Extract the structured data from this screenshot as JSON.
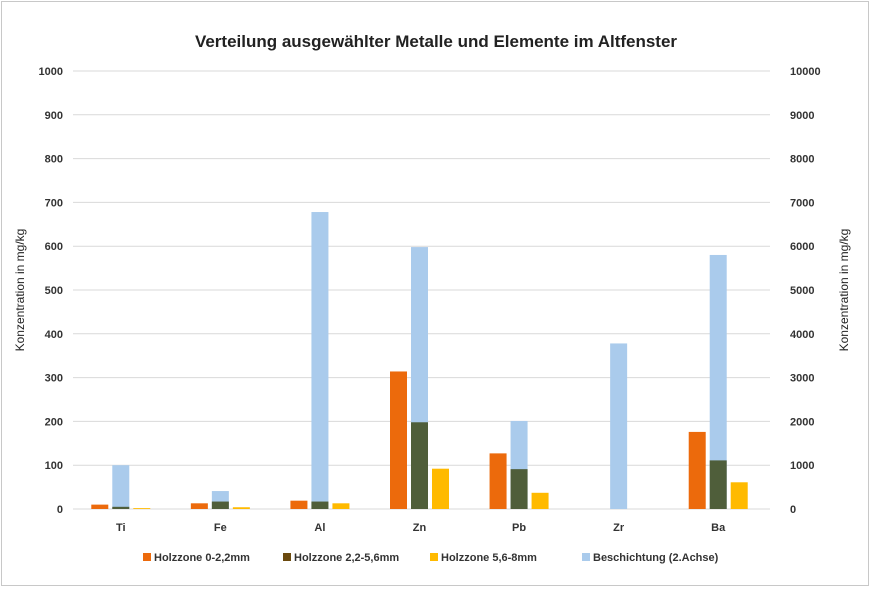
{
  "chart_data": {
    "type": "bar",
    "title": "Verteilung ausgewählter Metalle und Elemente im Altfenster",
    "ylabel": "Konzentration in mg/kg",
    "y2label": "Konzentration in mg/kg",
    "ylim": [
      0,
      1000
    ],
    "y2lim": [
      0,
      10000
    ],
    "yticks": [
      "0",
      "100",
      "200",
      "300",
      "400",
      "500",
      "600",
      "700",
      "800",
      "900",
      "1000"
    ],
    "y2ticks": [
      "0",
      "1000",
      "2000",
      "3000",
      "4000",
      "5000",
      "6000",
      "7000",
      "8000",
      "9000",
      "10000"
    ],
    "grid": true,
    "legend": "bottom",
    "categories": [
      "Ti",
      "Fe",
      "Al",
      "Zn",
      "Pb",
      "Zr",
      "Ba"
    ],
    "series": [
      {
        "name": "Holzzone 0-2,2mm",
        "axis": "primary",
        "color": "#ec6a0c",
        "legend_color": "#ec6a0c",
        "values": [
          10,
          13,
          19,
          314,
          127,
          0,
          176
        ]
      },
      {
        "name": "Holzzone 2,2-5,6mm",
        "axis": "primary",
        "color": "#4f5e3a",
        "legend_color": "#6b4a0e",
        "values": [
          5,
          17,
          17,
          198,
          91,
          0,
          111
        ]
      },
      {
        "name": "Holzzone 5,6-8mm",
        "axis": "primary",
        "color": "#ffba00",
        "legend_color": "#ffba00",
        "values": [
          2,
          4,
          13,
          92,
          37,
          0,
          61
        ]
      },
      {
        "name": "Beschichtung (2.Achse)",
        "axis": "secondary",
        "color": "#aacbec",
        "legend_color": "#aacbec",
        "values": [
          1000,
          410,
          6780,
          5980,
          2010,
          3780,
          5800
        ]
      }
    ]
  }
}
